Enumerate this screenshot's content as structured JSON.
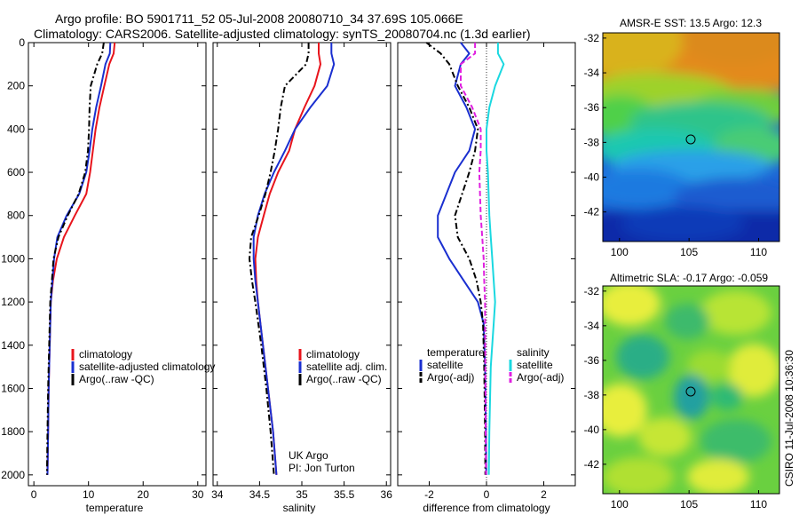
{
  "header": {
    "line1": "Argo profile: BO 5901711_52 05-Jul-2008 20080710_34 37.69S 105.066E",
    "line2": "Climatology: CARS2006. Satellite-adjusted climatology: synTS_20080704.nc (1.3d earlier)"
  },
  "footer_credit": "CSIRO 11-Jul-2008 10:36:30",
  "colors": {
    "climatology": "#e8141c",
    "satellite": "#1a2fd0",
    "argo": "#000000",
    "sal_satellite": "#1ad8e0",
    "sal_argo": "#e020e0"
  },
  "chart_data": [
    {
      "type": "line",
      "id": "temperature",
      "xlabel": "temperature",
      "xlim": [
        -1,
        31.5
      ],
      "ylim": [
        2050,
        0
      ],
      "xticks": [
        0,
        10,
        20,
        30
      ],
      "yticks": [
        0,
        200,
        400,
        600,
        800,
        1000,
        1200,
        1400,
        1600,
        1800,
        2000
      ],
      "legend": [
        "climatology",
        "satellite-adjusted climatology",
        "Argo(..raw -QC)"
      ],
      "series": [
        {
          "name": "climatology",
          "style": "solid",
          "color": "#e8141c",
          "x": [
            14.8,
            14.6,
            13.8,
            12.9,
            12.0,
            11.3,
            10.8,
            10.3,
            9.6,
            7.5,
            5.5,
            4.2,
            3.5,
            3.1,
            2.9,
            2.7,
            2.6,
            2.5
          ],
          "y": [
            0,
            50,
            100,
            200,
            300,
            400,
            500,
            600,
            700,
            800,
            900,
            1000,
            1100,
            1200,
            1400,
            1600,
            1800,
            2000
          ]
        },
        {
          "name": "satellite-adjusted climatology",
          "style": "solid",
          "color": "#1a2fd0",
          "x": [
            14.0,
            13.9,
            13.1,
            12.3,
            11.4,
            10.7,
            10.2,
            9.6,
            8.3,
            6.0,
            4.3,
            3.7,
            3.4,
            3.1,
            2.9,
            2.7,
            2.6,
            2.5
          ],
          "y": [
            0,
            50,
            100,
            200,
            300,
            400,
            500,
            600,
            700,
            800,
            900,
            1000,
            1100,
            1200,
            1400,
            1600,
            1800,
            2000
          ]
        },
        {
          "name": "Argo(..raw -QC)",
          "style": "dashdot",
          "color": "#000000",
          "x": [
            12.8,
            12.5,
            11.6,
            10.4,
            10.2,
            10.1,
            9.9,
            9.4,
            8.2,
            6.2,
            4.5,
            3.6,
            3.3,
            3.0,
            2.8,
            2.6,
            2.5,
            2.4
          ],
          "y": [
            0,
            50,
            100,
            200,
            300,
            400,
            500,
            600,
            700,
            800,
            900,
            1000,
            1100,
            1200,
            1400,
            1600,
            1800,
            2000
          ]
        }
      ]
    },
    {
      "type": "line",
      "id": "salinity",
      "xlabel": "salinity",
      "xlim": [
        33.95,
        36.05
      ],
      "ylim": [
        2050,
        0
      ],
      "xticks": [
        34,
        34.5,
        35,
        35.5,
        36
      ],
      "legend": [
        "climatology",
        "satellite adj. clim.",
        "Argo(..raw -QC)"
      ],
      "annotation": [
        "UK Argo",
        "PI: Jon Turton"
      ],
      "series": [
        {
          "name": "climatology",
          "style": "solid",
          "color": "#e8141c",
          "x": [
            35.2,
            35.2,
            35.22,
            35.15,
            35.03,
            34.92,
            34.85,
            34.72,
            34.62,
            34.55,
            34.48,
            34.45,
            34.46,
            34.48,
            34.54,
            34.6,
            34.66,
            34.7
          ],
          "y": [
            0,
            50,
            100,
            200,
            300,
            400,
            500,
            600,
            700,
            800,
            900,
            1000,
            1100,
            1200,
            1400,
            1600,
            1800,
            2000
          ]
        },
        {
          "name": "satellite adj. clim.",
          "style": "solid",
          "color": "#1a2fd0",
          "x": [
            35.35,
            35.35,
            35.38,
            35.3,
            35.1,
            34.92,
            34.8,
            34.67,
            34.56,
            34.48,
            34.43,
            34.43,
            34.45,
            34.48,
            34.54,
            34.6,
            34.66,
            34.7
          ],
          "y": [
            0,
            50,
            100,
            200,
            300,
            400,
            500,
            600,
            700,
            800,
            900,
            1000,
            1100,
            1200,
            1400,
            1600,
            1800,
            2000
          ]
        },
        {
          "name": "Argo(..raw -QC)",
          "style": "dashdot",
          "color": "#000000",
          "x": [
            35.08,
            35.08,
            35.05,
            34.8,
            34.75,
            34.72,
            34.68,
            34.63,
            34.57,
            34.49,
            34.4,
            34.38,
            34.41,
            34.45,
            34.52,
            34.58,
            34.63,
            34.67
          ],
          "y": [
            0,
            50,
            100,
            200,
            300,
            400,
            500,
            600,
            700,
            800,
            900,
            1000,
            1100,
            1200,
            1400,
            1600,
            1800,
            2000
          ]
        }
      ]
    },
    {
      "type": "line",
      "id": "difference",
      "xlabel": "difference from climatology",
      "xlim": [
        -3.1,
        3.1
      ],
      "ylim": [
        2050,
        0
      ],
      "xticks": [
        -2,
        0,
        2
      ],
      "legend_groups": [
        {
          "title": "temperature",
          "entries": [
            "satellite",
            "Argo(-adj)"
          ]
        },
        {
          "title": "salinity",
          "entries": [
            "satellite",
            "Argo(-adj)"
          ]
        }
      ],
      "series": [
        {
          "name": "satellite (temperature)",
          "style": "solid",
          "color": "#1a2fd0",
          "x": [
            -0.9,
            -0.6,
            -0.9,
            -1.1,
            -0.7,
            -0.4,
            -0.6,
            -1.1,
            -1.7,
            -1.7,
            -1.3,
            -0.8,
            -0.3,
            -0.1,
            -0.05,
            -0.02,
            -0.01
          ],
          "y": [
            0,
            50,
            100,
            200,
            300,
            400,
            500,
            600,
            800,
            900,
            1000,
            1100,
            1200,
            1300,
            1500,
            1800,
            2000
          ]
        },
        {
          "name": "Argo(-adj) (temperature)",
          "style": "dashdot",
          "color": "#000000",
          "x": [
            -2.1,
            -1.6,
            -1.3,
            -1.0,
            -0.6,
            -0.3,
            -0.4,
            -0.6,
            -1.1,
            -1.0,
            -0.6,
            -0.35,
            -0.2,
            -0.12,
            -0.08,
            -0.05,
            -0.04
          ],
          "y": [
            0,
            50,
            100,
            200,
            300,
            400,
            500,
            600,
            800,
            900,
            1000,
            1100,
            1200,
            1300,
            1500,
            1800,
            2000
          ]
        },
        {
          "name": "satellite (salinity)",
          "style": "solid",
          "color": "#1ad8e0",
          "x": [
            0.4,
            0.4,
            0.6,
            0.3,
            0.1,
            0.0,
            0.0,
            0.05,
            0.1,
            0.15,
            0.2,
            0.25,
            0.3,
            0.25,
            0.15,
            0.1,
            0.08
          ],
          "y": [
            0,
            50,
            100,
            200,
            300,
            400,
            500,
            600,
            800,
            900,
            1000,
            1100,
            1200,
            1300,
            1500,
            1800,
            2000
          ]
        },
        {
          "name": "Argo(-adj) (salinity)",
          "style": "dashed",
          "color": "#e020e0",
          "x": [
            -0.4,
            -0.4,
            -0.9,
            -0.9,
            -0.5,
            -0.2,
            -0.2,
            -0.25,
            -0.2,
            -0.15,
            -0.1,
            -0.08,
            -0.05,
            -0.05,
            -0.04,
            -0.03,
            -0.02
          ],
          "y": [
            0,
            50,
            100,
            200,
            300,
            400,
            500,
            600,
            800,
            900,
            1000,
            1100,
            1200,
            1300,
            1500,
            1800,
            2000
          ]
        }
      ]
    },
    {
      "type": "heatmap",
      "id": "sst-map",
      "title": "AMSR-E SST: 13.5 Argo: 12.3",
      "xlim": [
        98.8,
        111.5
      ],
      "ylim": [
        -43.7,
        -31.7
      ],
      "xticks": [
        100,
        105,
        110
      ],
      "yticks": [
        -32,
        -34,
        -36,
        -38,
        -40,
        -42
      ],
      "marker": {
        "lon": 105.066,
        "lat": -37.69
      },
      "colors": [
        "#e38a1e",
        "#d9b21c",
        "#9ed22b",
        "#4fd04a",
        "#1ac8b0",
        "#2aa0e8",
        "#1c64d6",
        "#0c2aa8"
      ]
    },
    {
      "type": "heatmap",
      "id": "sla-map",
      "title": "Altimetric SLA: -0.17 Argo: -0.059",
      "xlim": [
        98.8,
        111.5
      ],
      "ylim": [
        -43.7,
        -31.7
      ],
      "xticks": [
        100,
        105,
        110
      ],
      "yticks": [
        -32,
        -34,
        -36,
        -38,
        -40,
        -42
      ],
      "marker": {
        "lon": 105.066,
        "lat": -37.69
      },
      "colors": [
        "#e8ee3c",
        "#a8e030",
        "#50d046",
        "#2eba74",
        "#24a0a0"
      ]
    }
  ]
}
